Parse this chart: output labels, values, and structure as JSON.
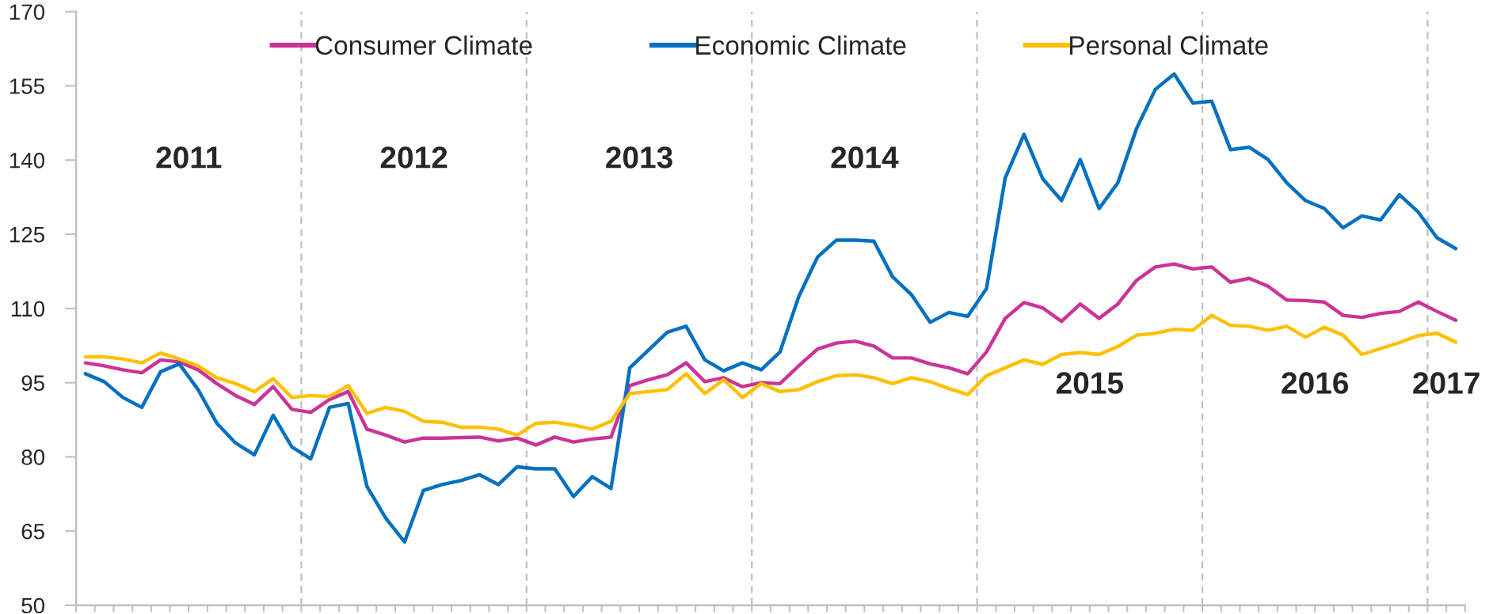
{
  "chart_data": {
    "type": "line",
    "categories": [
      null,
      null,
      null,
      null,
      null,
      null,
      null,
      null,
      null,
      null,
      null,
      null,
      null,
      null,
      null,
      null,
      null,
      null,
      null,
      null,
      null,
      null,
      null,
      null,
      null,
      null,
      null,
      null,
      null,
      null,
      null,
      null,
      null,
      null,
      null,
      null,
      null,
      null,
      null,
      null,
      null,
      null,
      null,
      null,
      null,
      null,
      null,
      null,
      null,
      null,
      null,
      null,
      null,
      null,
      null,
      null,
      null,
      null,
      null,
      null,
      null,
      null,
      null,
      null,
      null,
      null,
      null,
      null,
      null,
      null,
      null,
      null,
      null,
      null
    ],
    "series": [
      {
        "name": "Consumer Climate",
        "color": "#cc3399",
        "values": [
          99.0,
          98.4,
          97.6,
          97.0,
          99.6,
          99.2,
          97.6,
          94.8,
          92.4,
          90.6,
          94.2,
          89.6,
          89.0,
          91.6,
          93.2,
          85.6,
          84.4,
          83.0,
          83.8,
          83.8,
          83.9,
          84.0,
          83.2,
          83.8,
          82.4,
          84.0,
          83.0,
          83.6,
          84.0,
          94.4,
          95.6,
          96.6,
          99.0,
          95.2,
          96.0,
          94.2,
          95.0,
          94.8,
          98.4,
          101.8,
          103.0,
          103.4,
          102.4,
          100.0,
          100.0,
          98.8,
          98.0,
          96.8,
          101.2,
          108.0,
          111.2,
          110.1,
          107.4,
          110.9,
          108.0,
          110.9,
          115.7,
          118.4,
          119.0,
          118.0,
          118.4,
          115.3,
          116.1,
          114.5,
          111.7,
          111.6,
          111.3,
          108.6,
          108.2,
          109.0,
          109.4,
          111.3,
          109.4,
          107.6
        ]
      },
      {
        "name": "Economic Climate",
        "color": "#0070c0",
        "values": [
          96.8,
          95.2,
          92.0,
          90.0,
          97.2,
          98.8,
          93.6,
          86.8,
          82.8,
          80.4,
          88.4,
          82.0,
          79.6,
          90.0,
          90.8,
          74.0,
          67.6,
          62.8,
          73.2,
          74.4,
          75.2,
          76.4,
          74.4,
          78.0,
          77.6,
          77.6,
          72.0,
          76.0,
          73.6,
          98.0,
          101.6,
          105.2,
          106.4,
          99.6,
          97.4,
          99.0,
          97.6,
          101.2,
          112.4,
          120.4,
          123.8,
          123.8,
          123.6,
          116.4,
          112.8,
          107.2,
          109.2,
          108.4,
          114.0,
          136.4,
          145.2,
          136.2,
          131.8,
          140.1,
          130.2,
          135.4,
          146.4,
          154.3,
          157.4,
          151.5,
          151.9,
          142.1,
          142.6,
          140.1,
          135.4,
          131.8,
          130.2,
          126.3,
          128.7,
          127.9,
          133.0,
          129.5,
          124.3,
          122.1
        ]
      },
      {
        "name": "Personal Climate",
        "color": "#ffc000",
        "values": [
          100.2,
          100.2,
          99.8,
          99.0,
          101.0,
          99.8,
          98.4,
          96.0,
          94.8,
          93.2,
          95.8,
          92.0,
          92.4,
          92.2,
          94.4,
          88.8,
          90.0,
          89.2,
          87.2,
          87.0,
          86.0,
          86.0,
          85.6,
          84.4,
          86.8,
          87.0,
          86.4,
          85.6,
          87.2,
          92.8,
          93.2,
          93.6,
          96.8,
          92.8,
          95.6,
          92.0,
          94.8,
          93.2,
          93.6,
          95.2,
          96.4,
          96.6,
          96.0,
          94.8,
          96.0,
          95.2,
          93.8,
          92.6,
          96.4,
          98.0,
          99.6,
          98.7,
          100.7,
          101.1,
          100.7,
          102.3,
          104.6,
          105.0,
          105.8,
          105.6,
          108.6,
          106.6,
          106.4,
          105.6,
          106.4,
          104.2,
          106.2,
          104.6,
          100.7,
          101.9,
          103.1,
          104.5,
          105.0,
          103.2
        ]
      }
    ],
    "ylim": [
      50,
      170
    ],
    "yticks": [
      50,
      65,
      80,
      95,
      110,
      125,
      140,
      155,
      170
    ],
    "tick_labels": "y",
    "grid": false,
    "legend": "top",
    "marker": "none",
    "line_style": "solid",
    "annotations": [
      "2011",
      "2012",
      "2013",
      "2014",
      "2015",
      "2016",
      "2017"
    ]
  }
}
